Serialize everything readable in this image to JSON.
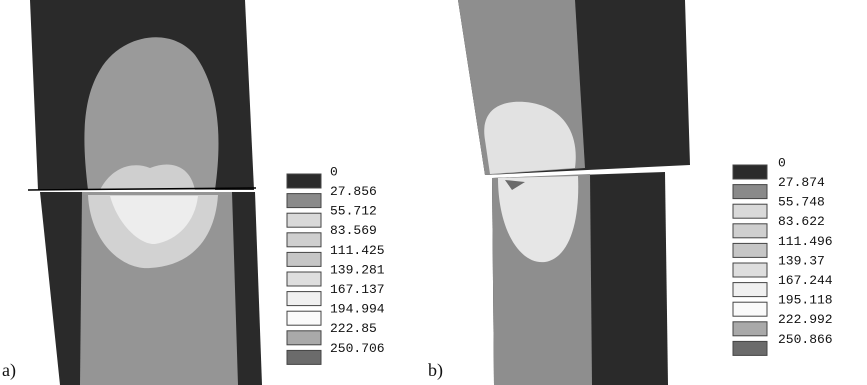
{
  "panels": [
    {
      "label": "a)",
      "legend": {
        "values": [
          0,
          27.856,
          55.712,
          83.569,
          111.425,
          139.281,
          167.137,
          194.994,
          222.85,
          250.706
        ],
        "colors": [
          "#2b2b2b",
          "#8a8a8a",
          "#d9d9d9",
          "#cfcfcf",
          "#c6c6c6",
          "#dedede",
          "#f0f0f0",
          "#fafafa",
          "#a9a9a9",
          "#6b6b6b"
        ]
      }
    },
    {
      "label": "b)",
      "legend": {
        "values": [
          0,
          27.874,
          55.748,
          83.622,
          111.496,
          139.37,
          167.244,
          195.118,
          222.992,
          250.866
        ],
        "colors": [
          "#2b2b2b",
          "#8a8a8a",
          "#d9d9d9",
          "#cfcfcf",
          "#c6c6c6",
          "#dedede",
          "#f0f0f0",
          "#fafafa",
          "#a9a9a9",
          "#6b6b6b"
        ]
      }
    }
  ]
}
